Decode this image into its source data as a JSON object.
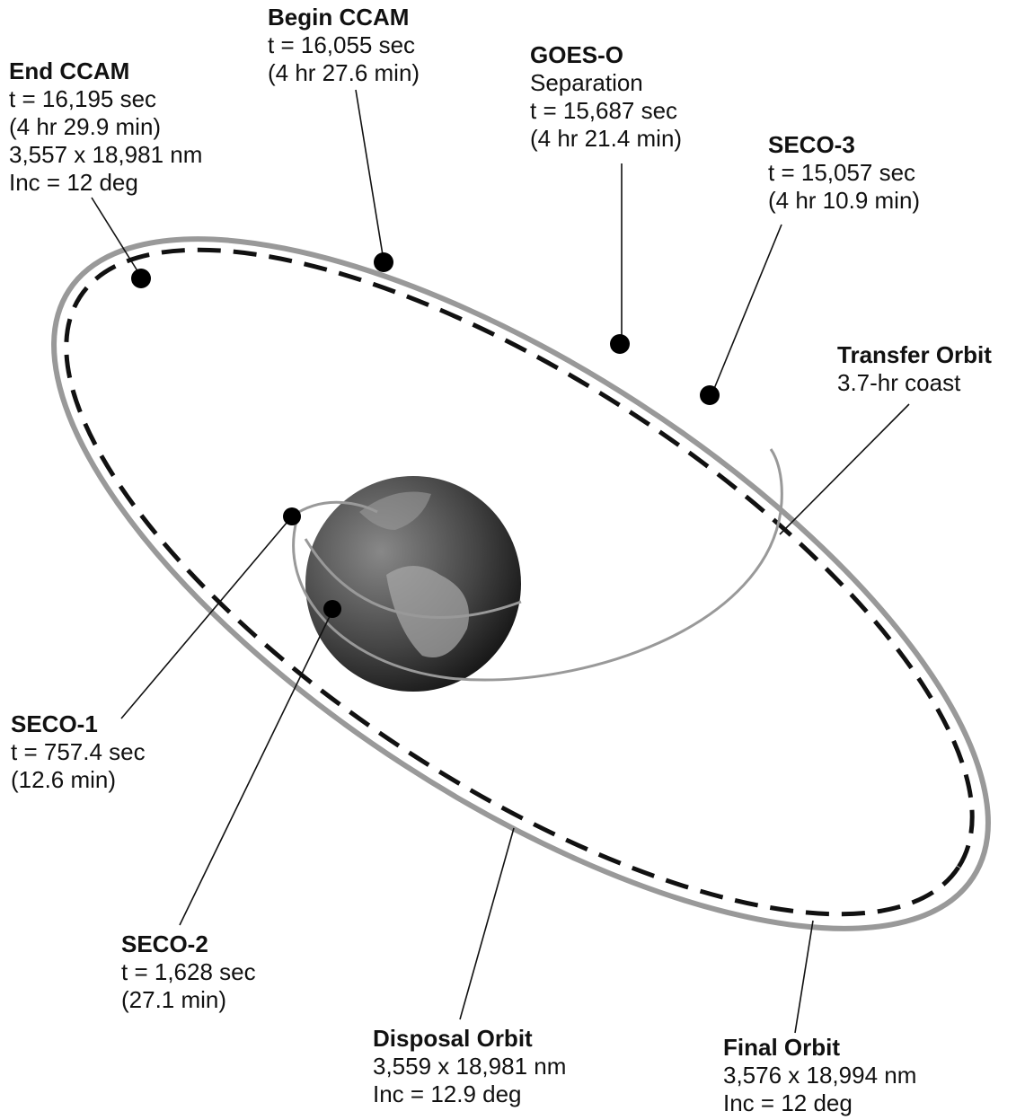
{
  "labels": [
    {
      "title": "End CCAM",
      "lines": [
        "t = 16,195 sec",
        "(4 hr 29.9 min)",
        "3,557 x 18,981 nm",
        "Inc = 12 deg"
      ]
    },
    {
      "title": "Begin CCAM",
      "lines": [
        "t = 16,055 sec",
        "(4 hr 27.6 min)"
      ]
    },
    {
      "title": "GOES-O",
      "lines": [
        "Separation",
        "t = 15,687 sec",
        "(4 hr 21.4 min)"
      ]
    },
    {
      "title": "SECO-3",
      "lines": [
        "t = 15,057 sec",
        "(4 hr 10.9 min)"
      ]
    },
    {
      "title": "Transfer Orbit",
      "lines": [
        "3.7-hr coast"
      ]
    },
    {
      "title": "SECO-1",
      "lines": [
        "t = 757.4 sec",
        "(12.6 min)"
      ]
    },
    {
      "title": "SECO-2",
      "lines": [
        "t = 1,628 sec",
        "(27.1 min)"
      ]
    },
    {
      "title": "Disposal Orbit",
      "lines": [
        "3,559 x 18,981 nm",
        "Inc = 12.9 deg"
      ]
    },
    {
      "title": "Final Orbit",
      "lines": [
        "3,576 x 18,994 nm",
        "Inc = 12 deg"
      ]
    }
  ]
}
